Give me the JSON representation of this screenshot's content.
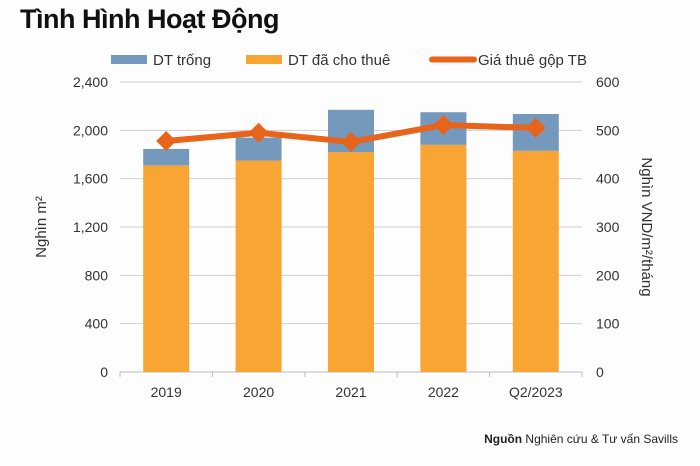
{
  "title": "Tình Hình Hoạt Động",
  "source": {
    "label": "Nguồn",
    "text": "Nghiên cứu & Tư vấn Savills"
  },
  "chart_data": {
    "type": "bar",
    "stacked": true,
    "categories": [
      "2019",
      "2020",
      "2021",
      "2022",
      "Q2/2023"
    ],
    "series": [
      {
        "name": "DT đã cho thuê",
        "type": "bar",
        "axis": "left",
        "color": "#f9a533",
        "values": [
          1710,
          1750,
          1820,
          1880,
          1830
        ]
      },
      {
        "name": "DT trống",
        "type": "bar",
        "axis": "left",
        "color": "#7598bd",
        "values": [
          136,
          190,
          350,
          270,
          305
        ]
      },
      {
        "name": "Giá thuê gộp TB",
        "type": "line",
        "axis": "right",
        "color": "#e8641a",
        "marker": "diamond",
        "values": [
          478,
          495,
          476,
          511,
          505
        ]
      }
    ],
    "legend_order": [
      "DT trống",
      "DT đã cho thuê",
      "Giá thuê gộp TB"
    ],
    "legend_position": "top",
    "ylabel": "Nghìn m²",
    "y2label": "Nghìn VND/m²/tháng",
    "ylim": [
      0,
      2400
    ],
    "y2lim": [
      0,
      600
    ],
    "yticks": [
      "0",
      "400",
      "800",
      "1,200",
      "1,600",
      "2,000",
      "2,400"
    ],
    "y2ticks": [
      "0",
      "100",
      "200",
      "300",
      "400",
      "500",
      "600"
    ],
    "grid": true
  }
}
